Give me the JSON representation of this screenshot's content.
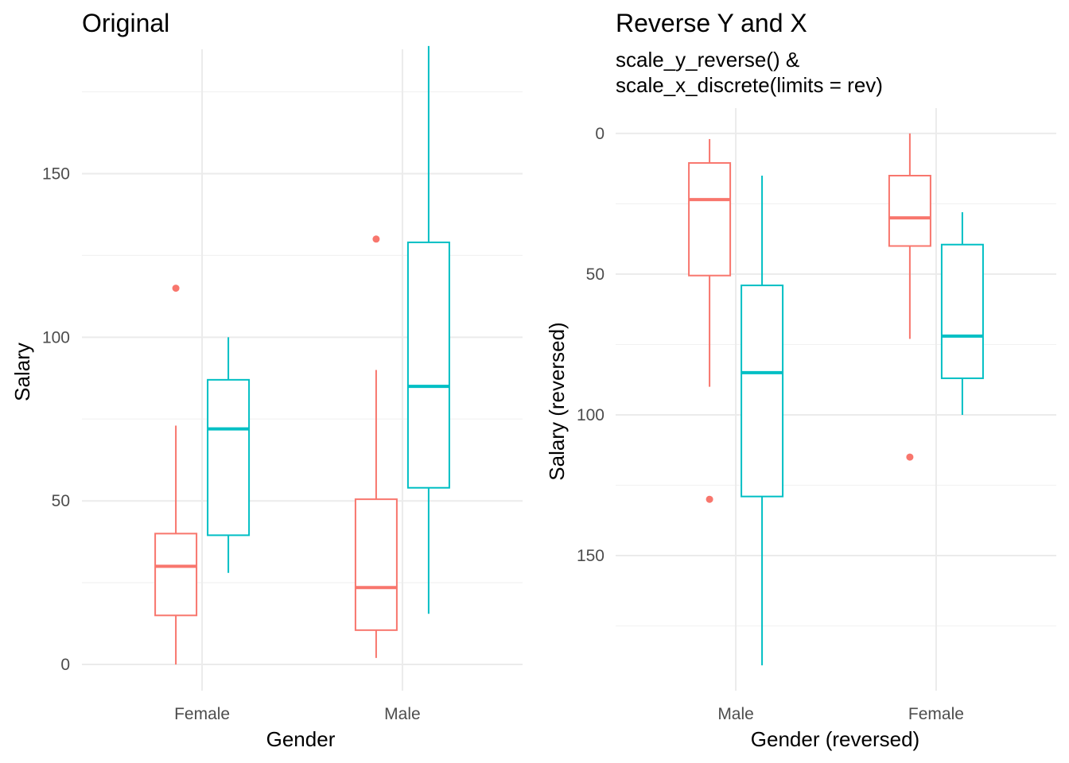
{
  "colors": {
    "series_a": "#F8766D",
    "series_b": "#00BFC4"
  },
  "chart_data": [
    {
      "type": "box",
      "title": "Original",
      "subtitle": [
        "",
        ""
      ],
      "xlabel": "Gender",
      "ylabel": "Salary",
      "reversed_y": false,
      "categories": [
        "Female",
        "Male"
      ],
      "ylim": [
        -8,
        188
      ],
      "yticks": [
        0,
        50,
        100,
        150
      ],
      "minor_yticks": [
        25,
        75,
        125,
        175
      ],
      "grid": true,
      "legend": "none",
      "series": [
        {
          "color": "#F8766D",
          "boxes": [
            {
              "category": "Female",
              "whisker_low": 0,
              "q1": 15,
              "median": 30,
              "q3": 40,
              "whisker_high": 73,
              "outliers": [
                115
              ]
            },
            {
              "category": "Male",
              "whisker_low": 2,
              "q1": 10.5,
              "median": 23.5,
              "q3": 50.5,
              "whisker_high": 90,
              "outliers": [
                130
              ]
            }
          ]
        },
        {
          "color": "#00BFC4",
          "boxes": [
            {
              "category": "Female",
              "whisker_low": 28,
              "q1": 39.5,
              "median": 72,
              "q3": 87,
              "whisker_high": 100,
              "outliers": []
            },
            {
              "category": "Male",
              "whisker_low": 15.5,
              "q1": 54,
              "median": 85,
              "q3": 129,
              "whisker_high": 189,
              "outliers": []
            }
          ]
        }
      ]
    },
    {
      "type": "box",
      "title": "Reverse Y and X",
      "subtitle": [
        "scale_y_reverse() &",
        "scale_x_discrete(limits = rev)"
      ],
      "xlabel": "Gender (reversed)",
      "ylabel": "Salary (reversed)",
      "reversed_y": true,
      "categories": [
        "Male",
        "Female"
      ],
      "ylim": [
        -9,
        198
      ],
      "yticks": [
        0,
        50,
        100,
        150
      ],
      "minor_yticks": [
        25,
        75,
        125,
        175
      ],
      "grid": true,
      "legend": "none",
      "series": [
        {
          "color": "#F8766D",
          "boxes": [
            {
              "category": "Male",
              "whisker_low": 2,
              "q1": 10.5,
              "median": 23.5,
              "q3": 50.5,
              "whisker_high": 90,
              "outliers": [
                130
              ]
            },
            {
              "category": "Female",
              "whisker_low": 0,
              "q1": 15,
              "median": 30,
              "q3": 40,
              "whisker_high": 73,
              "outliers": [
                115
              ]
            }
          ]
        },
        {
          "color": "#00BFC4",
          "boxes": [
            {
              "category": "Male",
              "whisker_low": 15,
              "q1": 54,
              "median": 85,
              "q3": 129,
              "whisker_high": 189,
              "outliers": []
            },
            {
              "category": "Female",
              "whisker_low": 28,
              "q1": 39.5,
              "median": 72,
              "q3": 87,
              "whisker_high": 100,
              "outliers": []
            }
          ]
        }
      ]
    }
  ]
}
